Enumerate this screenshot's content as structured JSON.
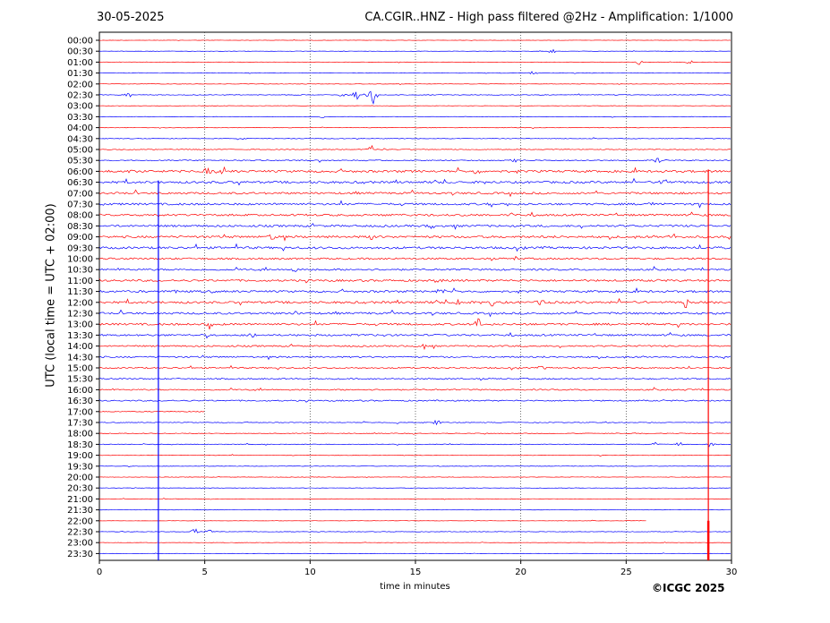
{
  "header": {
    "date": "30-05-2025",
    "title": "CA.CGIR..HNZ - High pass filtered @2Hz - Amplification: 1/1000"
  },
  "footer": {
    "copyright": "©ICGC 2025"
  },
  "chart_data": {
    "type": "line",
    "title": "CA.CGIR..HNZ - High pass filtered @2Hz - Amplification: 1/1000",
    "xlabel": "time in minutes",
    "ylabel": "UTC (local time = UTC + 02:00)",
    "xlim": [
      0,
      30
    ],
    "xticks": [
      0,
      5,
      10,
      15,
      20,
      25,
      30
    ],
    "grid": "vertical dotted lines at 5, 10, 15, 20, 25",
    "series_colors": [
      "#ff0000",
      "#0000ff"
    ],
    "rows": [
      "00:00",
      "00:30",
      "01:00",
      "01:30",
      "02:00",
      "02:30",
      "03:00",
      "03:30",
      "04:00",
      "04:30",
      "05:00",
      "05:30",
      "06:00",
      "06:30",
      "07:00",
      "07:30",
      "08:00",
      "08:30",
      "09:00",
      "09:30",
      "10:00",
      "10:30",
      "11:00",
      "11:30",
      "12:00",
      "12:30",
      "13:00",
      "13:30",
      "14:00",
      "14:30",
      "15:00",
      "15:30",
      "16:00",
      "16:30",
      "17:00",
      "17:30",
      "18:00",
      "18:30",
      "19:00",
      "19:30",
      "20:00",
      "20:30",
      "21:00",
      "21:30",
      "22:00",
      "22:30",
      "23:00",
      "23:30"
    ],
    "noise_level": [
      0.15,
      0.15,
      0.2,
      0.2,
      0.2,
      0.3,
      0.15,
      0.2,
      0.25,
      0.3,
      0.35,
      0.5,
      1.0,
      1.0,
      0.9,
      0.9,
      0.9,
      0.9,
      1.0,
      1.0,
      0.8,
      0.8,
      0.9,
      0.9,
      1.0,
      0.9,
      0.9,
      0.8,
      0.7,
      0.7,
      0.6,
      0.6,
      0.6,
      0.6,
      0.4,
      0.3,
      0.3,
      0.3,
      0.25,
      0.2,
      0.2,
      0.2,
      0.2,
      0.15,
      0.15,
      0.25,
      0.15,
      0.15
    ],
    "row_end_minutes": {
      "17:00": 5.0,
      "22:00": 26.0,
      "22:30": 30.0
    },
    "events": [
      {
        "row": "00:30",
        "minute": 21.5,
        "amp": 3
      },
      {
        "row": "01:00",
        "minute": 25.6,
        "amp": 3
      },
      {
        "row": "01:00",
        "minute": 28.0,
        "amp": 3
      },
      {
        "row": "01:30",
        "minute": 20.6,
        "amp": 3
      },
      {
        "row": "02:30",
        "minute": 1.4,
        "amp": 3
      },
      {
        "row": "02:30",
        "minute": 11.5,
        "amp": 4
      },
      {
        "row": "02:30",
        "minute": 12.2,
        "amp": 6
      },
      {
        "row": "02:30",
        "minute": 12.6,
        "amp": 5
      },
      {
        "row": "02:30",
        "minute": 13.0,
        "amp": 12
      },
      {
        "row": "03:30",
        "minute": 10.5,
        "amp": 3
      },
      {
        "row": "05:00",
        "minute": 12.9,
        "amp": 6
      },
      {
        "row": "05:30",
        "minute": 19.7,
        "amp": 5
      },
      {
        "row": "05:30",
        "minute": 26.5,
        "amp": 5
      },
      {
        "row": "06:00",
        "minute": 1.4,
        "amp": 4
      },
      {
        "row": "06:00",
        "minute": 5.1,
        "amp": 5
      },
      {
        "row": "06:00",
        "minute": 5.9,
        "amp": 6
      },
      {
        "row": "06:00",
        "minute": 17.9,
        "amp": 4
      },
      {
        "row": "06:30",
        "minute": 26.8,
        "amp": 5
      },
      {
        "row": "07:30",
        "minute": 18.6,
        "amp": 4
      },
      {
        "row": "07:30",
        "minute": 26.2,
        "amp": 4
      },
      {
        "row": "08:00",
        "minute": 19.5,
        "amp": 5
      },
      {
        "row": "08:30",
        "minute": 15.7,
        "amp": 4
      },
      {
        "row": "09:00",
        "minute": 8.2,
        "amp": 5
      },
      {
        "row": "09:00",
        "minute": 12.9,
        "amp": 4
      },
      {
        "row": "09:00",
        "minute": 27.2,
        "amp": 4
      },
      {
        "row": "10:00",
        "minute": 19.8,
        "amp": 4
      },
      {
        "row": "10:30",
        "minute": 9.3,
        "amp": 3
      },
      {
        "row": "11:00",
        "minute": 16.1,
        "amp": 6
      },
      {
        "row": "11:30",
        "minute": 16.2,
        "amp": 6
      },
      {
        "row": "11:30",
        "minute": 3.6,
        "amp": 3
      },
      {
        "row": "12:00",
        "minute": 17.1,
        "amp": 5
      },
      {
        "row": "12:00",
        "minute": 18.6,
        "amp": 5
      },
      {
        "row": "12:00",
        "minute": 21.0,
        "amp": 5
      },
      {
        "row": "12:00",
        "minute": 27.8,
        "amp": 7
      },
      {
        "row": "12:30",
        "minute": 9.2,
        "amp": 3
      },
      {
        "row": "13:00",
        "minute": 5.2,
        "amp": 7
      },
      {
        "row": "13:00",
        "minute": 18.0,
        "amp": 7
      },
      {
        "row": "13:30",
        "minute": 7.3,
        "amp": 4
      },
      {
        "row": "14:00",
        "minute": 15.4,
        "amp": 3
      },
      {
        "row": "15:00",
        "minute": 21.0,
        "amp": 3
      },
      {
        "row": "17:30",
        "minute": 14.2,
        "amp": 3
      },
      {
        "row": "17:30",
        "minute": 16.0,
        "amp": 3
      },
      {
        "row": "18:30",
        "minute": 26.4,
        "amp": 3
      },
      {
        "row": "18:30",
        "minute": 27.5,
        "amp": 3
      },
      {
        "row": "18:30",
        "minute": 29.0,
        "amp": 3
      },
      {
        "row": "22:30",
        "minute": 4.5,
        "amp": 5
      },
      {
        "row": "22:30",
        "minute": 5.2,
        "amp": 4
      }
    ],
    "long_spikes": [
      {
        "minute": 2.8,
        "from_row": "06:30",
        "to_row": "23:30",
        "color": "#0000ff"
      },
      {
        "minute": 28.9,
        "from_row": "06:00",
        "to_row": "23:30",
        "color": "#ff0000"
      }
    ]
  }
}
